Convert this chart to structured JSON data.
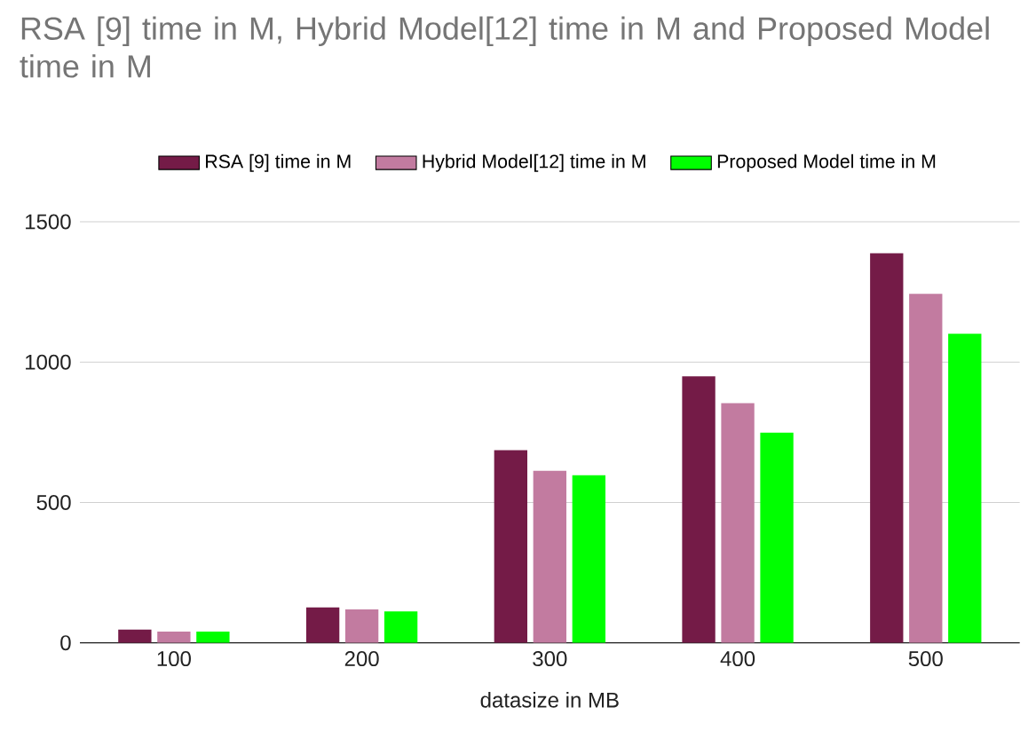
{
  "chart_data": {
    "type": "bar",
    "title": "RSA  [9] time in M, Hybrid Model[12] time in M and Proposed Model time in M",
    "xlabel": "datasize in MB",
    "categories": [
      "100",
      "200",
      "300",
      "400",
      "500"
    ],
    "series": [
      {
        "name": "RSA  [9] time in M",
        "color": "#741b47",
        "values": [
          47,
          126,
          686,
          949,
          1388
        ]
      },
      {
        "name": "Hybrid Model[12] time in M",
        "color": "#c27ba0",
        "values": [
          40,
          119,
          613,
          854,
          1243
        ]
      },
      {
        "name": "Proposed Model time in M",
        "color": "#00ff00",
        "values": [
          40,
          112,
          597,
          749,
          1101
        ]
      }
    ],
    "ylim": [
      0,
      1500
    ],
    "yticks": [
      0,
      500,
      1000,
      1500
    ],
    "grid": "y",
    "legend": "top"
  }
}
